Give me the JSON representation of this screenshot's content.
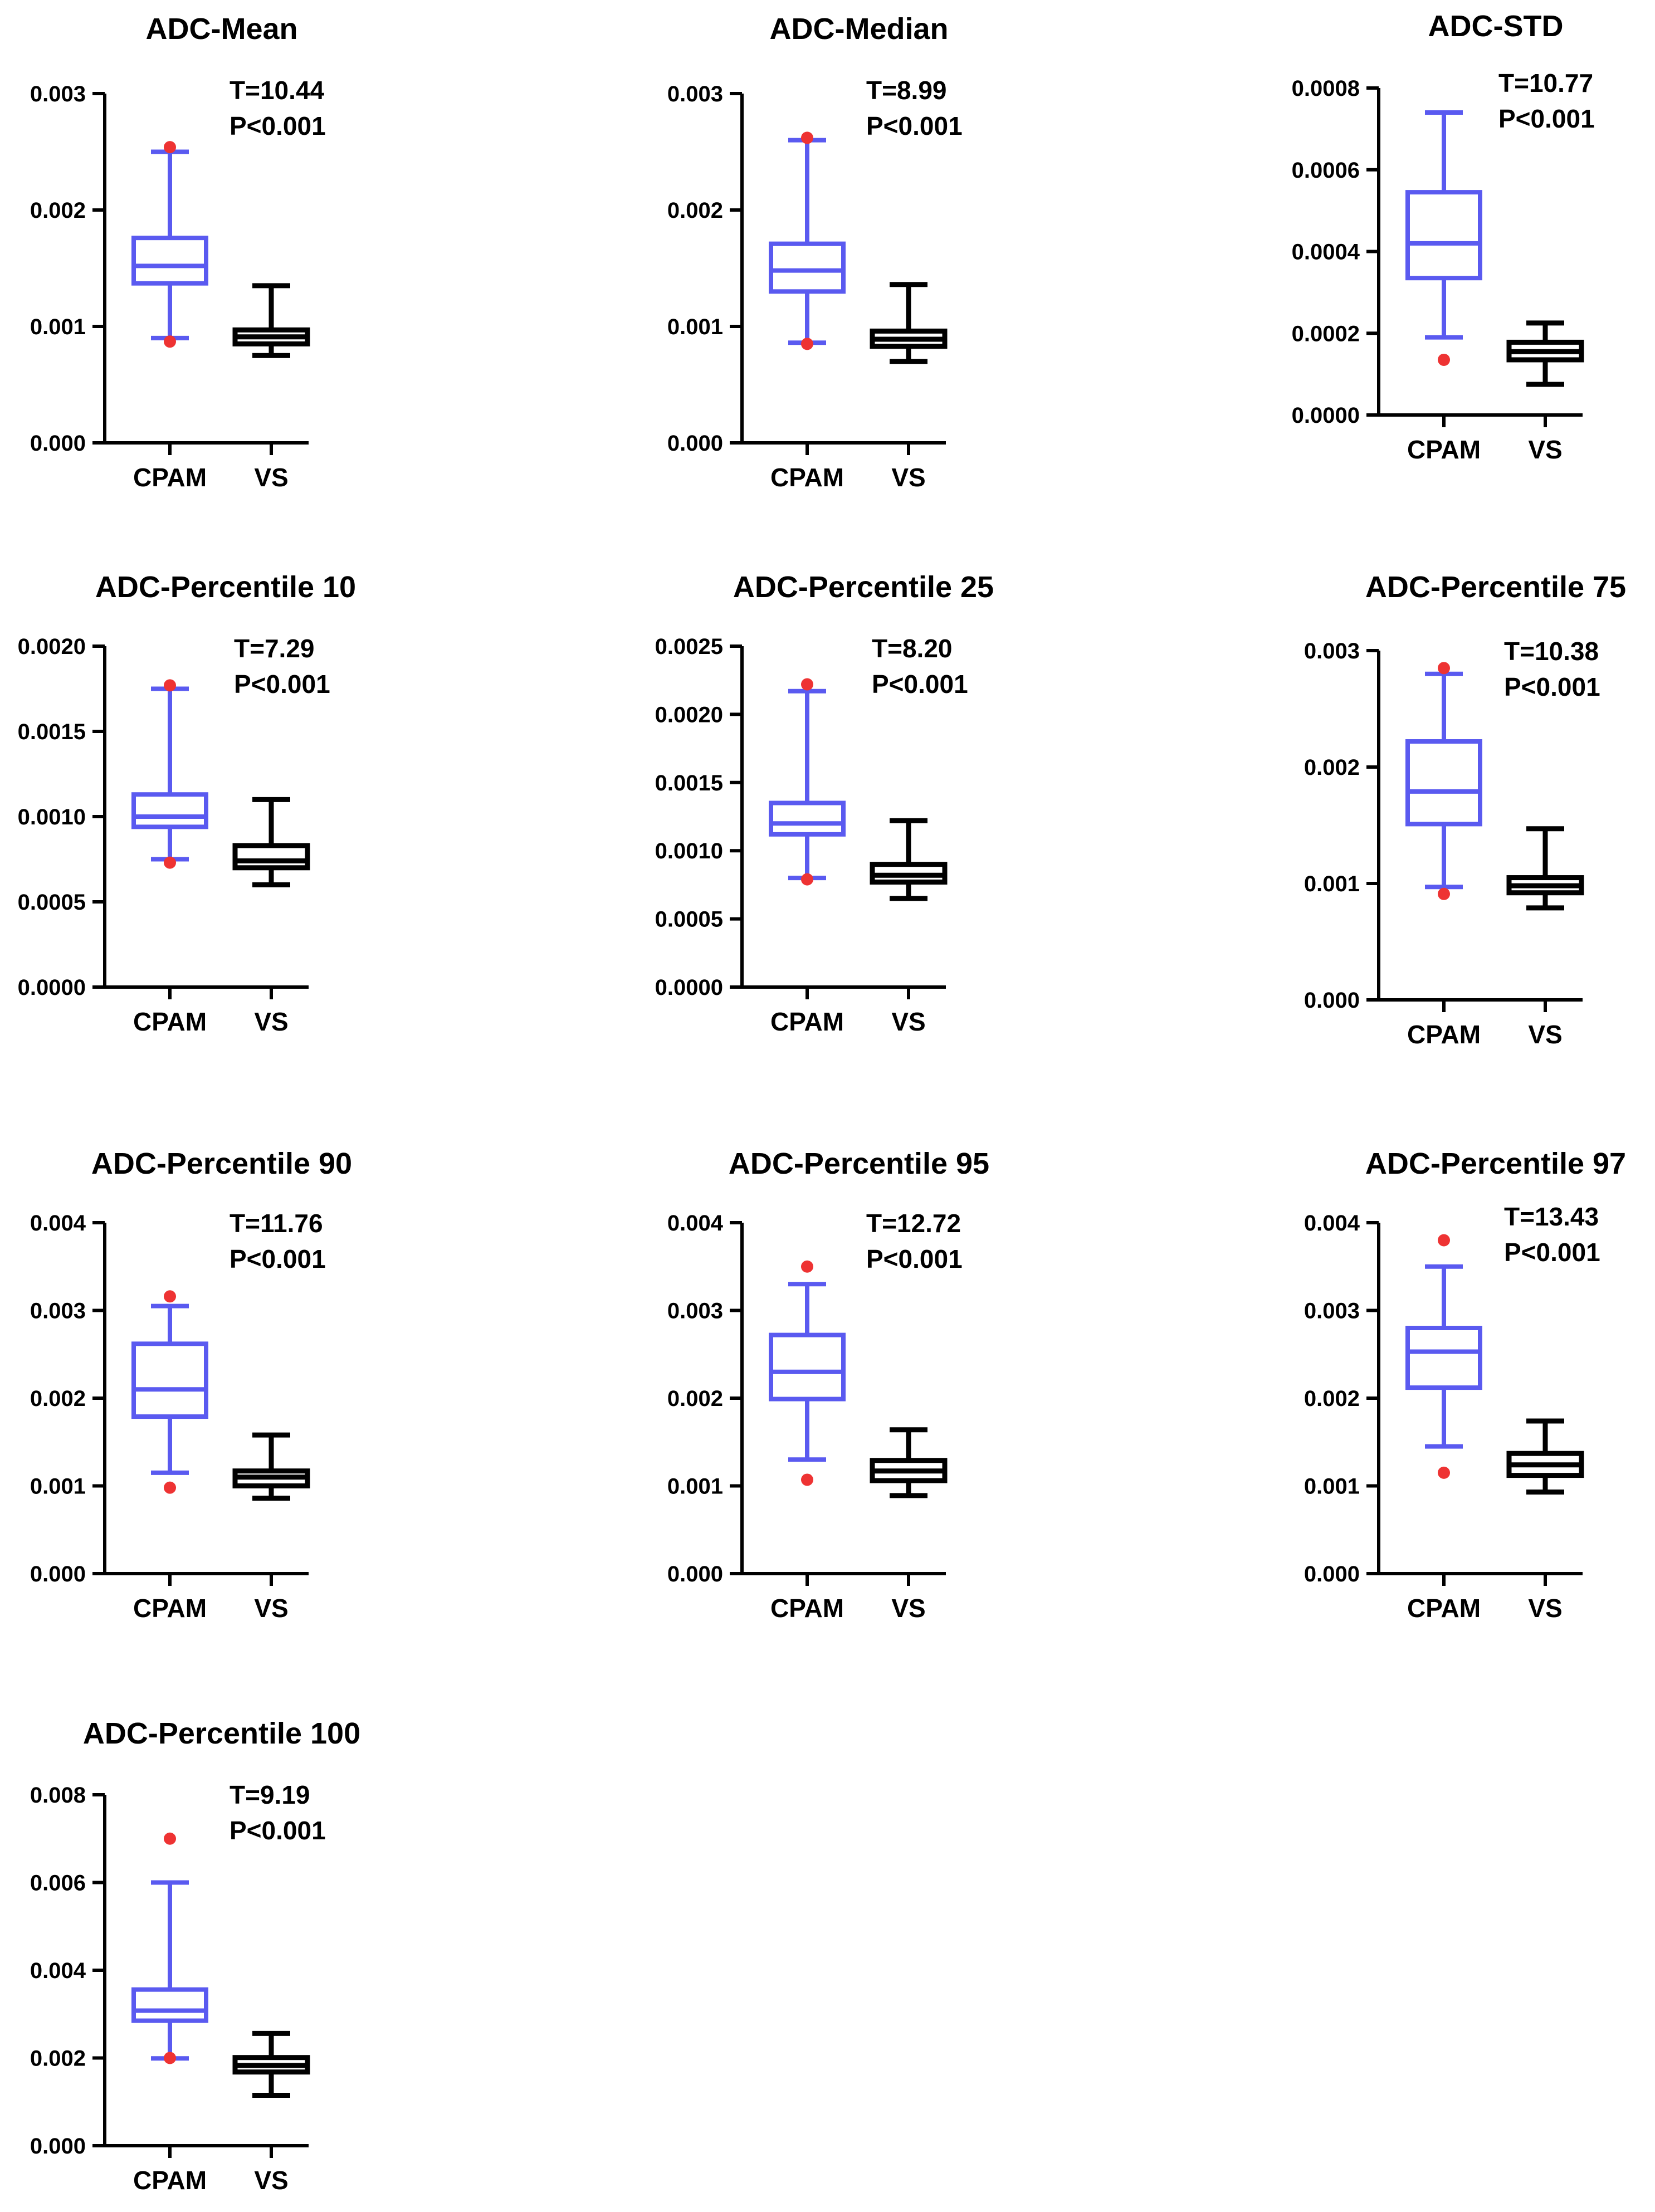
{
  "colors": {
    "cpam": "#5a5af0",
    "vs": "#000000",
    "outlier": "#ee3333",
    "axis": "#000000"
  },
  "chart_data": [
    {
      "type": "box",
      "title": "ADC-Mean",
      "t_label": "T=10.44",
      "p_label": "P<0.001",
      "ylim": [
        0,
        0.003
      ],
      "yticks": [
        0,
        0.001,
        0.002,
        0.003
      ],
      "ytick_labels": [
        "0.000",
        "0.001",
        "0.002",
        "0.003"
      ],
      "categories": [
        "CPAM",
        "VS"
      ],
      "series": [
        {
          "name": "CPAM",
          "min": 0.0009,
          "q1": 0.00137,
          "median": 0.00152,
          "q3": 0.00176,
          "max": 0.0025,
          "outliers": [
            0.00254,
            0.00087
          ]
        },
        {
          "name": "VS",
          "min": 0.00075,
          "q1": 0.00085,
          "median": 0.00091,
          "q3": 0.00097,
          "max": 0.00135,
          "outliers": []
        }
      ]
    },
    {
      "type": "box",
      "title": "ADC-Median",
      "t_label": "T=8.99",
      "p_label": "P<0.001",
      "ylim": [
        0,
        0.003
      ],
      "yticks": [
        0,
        0.001,
        0.002,
        0.003
      ],
      "ytick_labels": [
        "0.000",
        "0.001",
        "0.002",
        "0.003"
      ],
      "categories": [
        "CPAM",
        "VS"
      ],
      "series": [
        {
          "name": "CPAM",
          "min": 0.00086,
          "q1": 0.0013,
          "median": 0.00148,
          "q3": 0.00171,
          "max": 0.0026,
          "outliers": [
            0.00262,
            0.00085
          ]
        },
        {
          "name": "VS",
          "min": 0.0007,
          "q1": 0.00083,
          "median": 0.00089,
          "q3": 0.00096,
          "max": 0.00136,
          "outliers": []
        }
      ]
    },
    {
      "type": "box",
      "title": "ADC-STD",
      "t_label": "T=10.77",
      "p_label": "P<0.001",
      "ylim": [
        0,
        0.0008
      ],
      "yticks": [
        0,
        0.0002,
        0.0004,
        0.0006,
        0.0008
      ],
      "ytick_labels": [
        "0.0000",
        "0.0002",
        "0.0004",
        "0.0006",
        "0.0008"
      ],
      "categories": [
        "CPAM",
        "VS"
      ],
      "series": [
        {
          "name": "CPAM",
          "min": 0.00019,
          "q1": 0.000335,
          "median": 0.00042,
          "q3": 0.000545,
          "max": 0.00074,
          "outliers": [
            0.000135
          ]
        },
        {
          "name": "VS",
          "min": 7.5e-05,
          "q1": 0.000135,
          "median": 0.000155,
          "q3": 0.000178,
          "max": 0.000225,
          "outliers": []
        }
      ]
    },
    {
      "type": "box",
      "title": "ADC-Percentile 10",
      "t_label": "T=7.29",
      "p_label": "P<0.001",
      "ylim": [
        0,
        0.002
      ],
      "yticks": [
        0,
        0.0005,
        0.001,
        0.0015,
        0.002
      ],
      "ytick_labels": [
        "0.0000",
        "0.0005",
        "0.0010",
        "0.0015",
        "0.0020"
      ],
      "categories": [
        "CPAM",
        "VS"
      ],
      "series": [
        {
          "name": "CPAM",
          "min": 0.00075,
          "q1": 0.00094,
          "median": 0.001,
          "q3": 0.00113,
          "max": 0.00175,
          "outliers": [
            0.00177,
            0.00073
          ]
        },
        {
          "name": "VS",
          "min": 0.0006,
          "q1": 0.0007,
          "median": 0.00074,
          "q3": 0.00083,
          "max": 0.0011,
          "outliers": []
        }
      ]
    },
    {
      "type": "box",
      "title": "ADC-Percentile 25",
      "t_label": "T=8.20",
      "p_label": "P<0.001",
      "ylim": [
        0,
        0.0025
      ],
      "yticks": [
        0,
        0.0005,
        0.001,
        0.0015,
        0.002,
        0.0025
      ],
      "ytick_labels": [
        "0.0000",
        "0.0005",
        "0.0010",
        "0.0015",
        "0.0020",
        "0.0025"
      ],
      "categories": [
        "CPAM",
        "VS"
      ],
      "series": [
        {
          "name": "CPAM",
          "min": 0.0008,
          "q1": 0.00112,
          "median": 0.0012,
          "q3": 0.00135,
          "max": 0.00217,
          "outliers": [
            0.00222,
            0.00079
          ]
        },
        {
          "name": "VS",
          "min": 0.00065,
          "q1": 0.00077,
          "median": 0.00082,
          "q3": 0.0009,
          "max": 0.00122,
          "outliers": []
        }
      ]
    },
    {
      "type": "box",
      "title": "ADC-Percentile 75",
      "t_label": "T=10.38",
      "p_label": "P<0.001",
      "ylim": [
        0,
        0.003
      ],
      "yticks": [
        0,
        0.001,
        0.002,
        0.003
      ],
      "ytick_labels": [
        "0.000",
        "0.001",
        "0.002",
        "0.003"
      ],
      "categories": [
        "CPAM",
        "VS"
      ],
      "series": [
        {
          "name": "CPAM",
          "min": 0.00097,
          "q1": 0.00151,
          "median": 0.00179,
          "q3": 0.00222,
          "max": 0.0028,
          "outliers": [
            0.00285,
            0.00091
          ]
        },
        {
          "name": "VS",
          "min": 0.00079,
          "q1": 0.00092,
          "median": 0.00098,
          "q3": 0.00105,
          "max": 0.00147,
          "outliers": []
        }
      ]
    },
    {
      "type": "box",
      "title": "ADC-Percentile 90",
      "t_label": "T=11.76",
      "p_label": "P<0.001",
      "ylim": [
        0,
        0.004
      ],
      "yticks": [
        0,
        0.001,
        0.002,
        0.003,
        0.004
      ],
      "ytick_labels": [
        "0.000",
        "0.001",
        "0.002",
        "0.003",
        "0.004"
      ],
      "categories": [
        "CPAM",
        "VS"
      ],
      "series": [
        {
          "name": "CPAM",
          "min": 0.00115,
          "q1": 0.00179,
          "median": 0.0021,
          "q3": 0.00262,
          "max": 0.00305,
          "outliers": [
            0.00316,
            0.00098
          ]
        },
        {
          "name": "VS",
          "min": 0.00086,
          "q1": 0.001,
          "median": 0.0011,
          "q3": 0.00117,
          "max": 0.00158,
          "outliers": []
        }
      ]
    },
    {
      "type": "box",
      "title": "ADC-Percentile 95",
      "t_label": "T=12.72",
      "p_label": "P<0.001",
      "ylim": [
        0,
        0.004
      ],
      "yticks": [
        0,
        0.001,
        0.002,
        0.003,
        0.004
      ],
      "ytick_labels": [
        "0.000",
        "0.001",
        "0.002",
        "0.003",
        "0.004"
      ],
      "categories": [
        "CPAM",
        "VS"
      ],
      "series": [
        {
          "name": "CPAM",
          "min": 0.0013,
          "q1": 0.00199,
          "median": 0.0023,
          "q3": 0.00272,
          "max": 0.0033,
          "outliers": [
            0.0035,
            0.00107
          ]
        },
        {
          "name": "VS",
          "min": 0.00089,
          "q1": 0.00106,
          "median": 0.00117,
          "q3": 0.00129,
          "max": 0.00164,
          "outliers": []
        }
      ]
    },
    {
      "type": "box",
      "title": "ADC-Percentile 97",
      "t_label": "T=13.43",
      "p_label": "P<0.001",
      "ylim": [
        0,
        0.004
      ],
      "yticks": [
        0,
        0.001,
        0.002,
        0.003,
        0.004
      ],
      "ytick_labels": [
        "0.000",
        "0.001",
        "0.002",
        "0.003",
        "0.004"
      ],
      "categories": [
        "CPAM",
        "VS"
      ],
      "series": [
        {
          "name": "CPAM",
          "min": 0.00145,
          "q1": 0.00212,
          "median": 0.00253,
          "q3": 0.0028,
          "max": 0.0035,
          "outliers": [
            0.0038,
            0.00115
          ]
        },
        {
          "name": "VS",
          "min": 0.00093,
          "q1": 0.00112,
          "median": 0.00124,
          "q3": 0.00137,
          "max": 0.00174,
          "outliers": []
        }
      ]
    },
    {
      "type": "box",
      "title": "ADC-Percentile 100",
      "t_label": "T=9.19",
      "p_label": "P<0.001",
      "ylim": [
        0,
        0.008
      ],
      "yticks": [
        0,
        0.002,
        0.004,
        0.006,
        0.008
      ],
      "ytick_labels": [
        "0.000",
        "0.002",
        "0.004",
        "0.006",
        "0.008"
      ],
      "categories": [
        "CPAM",
        "VS"
      ],
      "series": [
        {
          "name": "CPAM",
          "min": 0.00199,
          "q1": 0.00285,
          "median": 0.00308,
          "q3": 0.00356,
          "max": 0.006,
          "outliers": [
            0.007,
            0.002
          ]
        },
        {
          "name": "VS",
          "min": 0.00115,
          "q1": 0.00168,
          "median": 0.00183,
          "q3": 0.00201,
          "max": 0.00256,
          "outliers": []
        }
      ]
    }
  ]
}
